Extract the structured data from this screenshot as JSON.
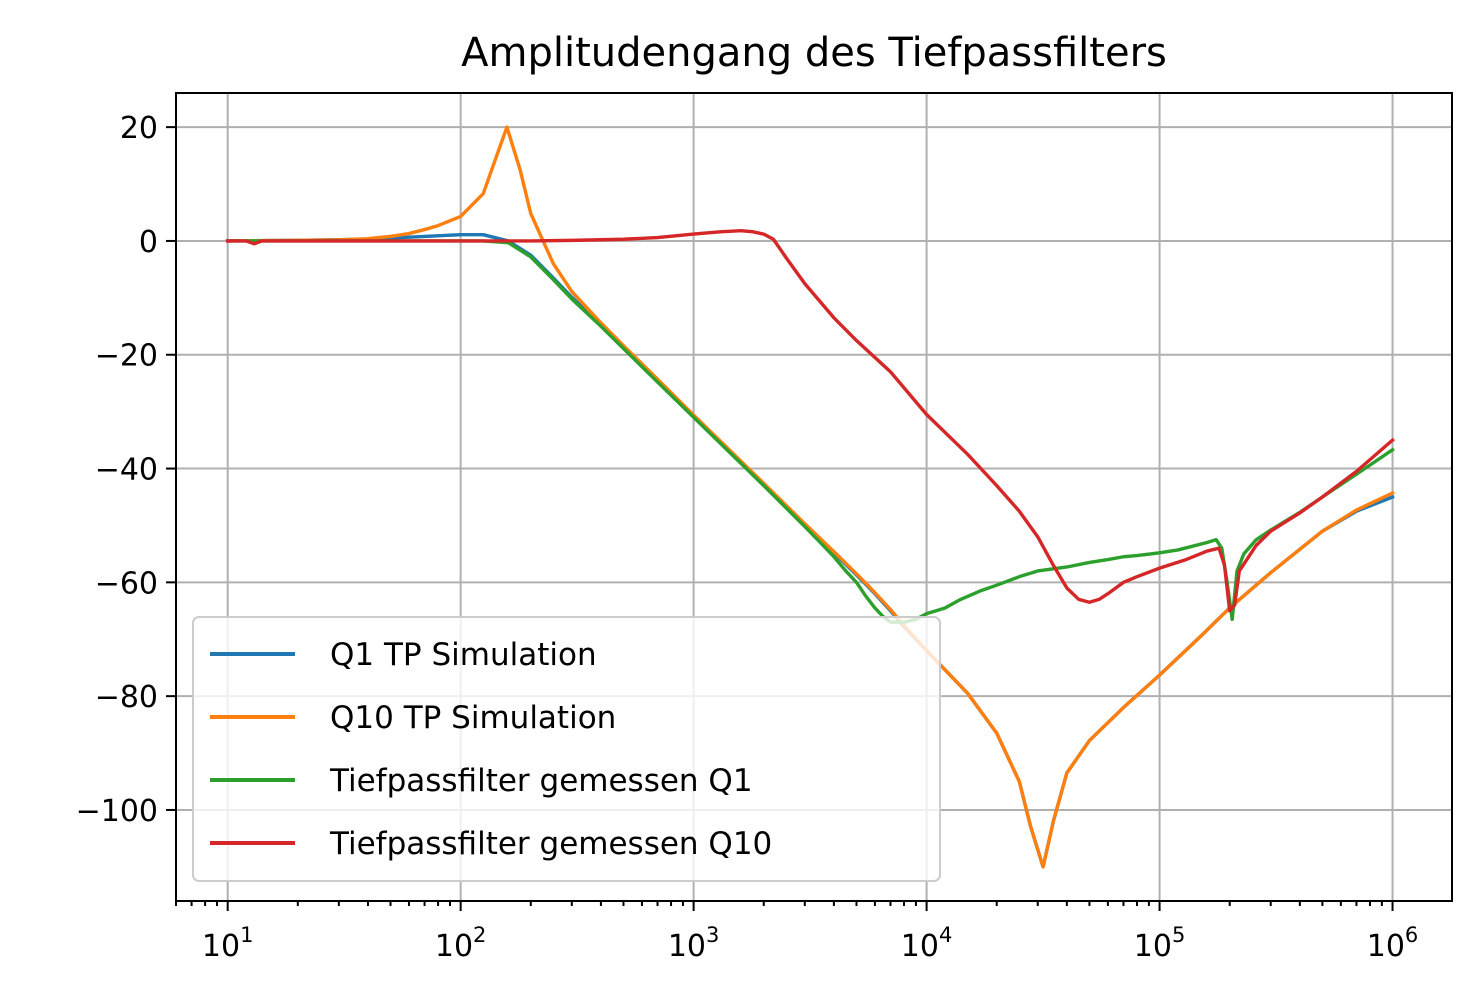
{
  "chart_data": {
    "type": "line",
    "title": "Amplitudengang des Tiefpassfilters",
    "xlabel": "",
    "ylabel": "",
    "xscale": "log",
    "xlim": [
      6,
      1800000
    ],
    "ylim": [
      -116,
      26
    ],
    "x_ticks": [
      {
        "value": 10,
        "base": "10",
        "exp": "1"
      },
      {
        "value": 100,
        "base": "10",
        "exp": "2"
      },
      {
        "value": 1000,
        "base": "10",
        "exp": "3"
      },
      {
        "value": 10000,
        "base": "10",
        "exp": "4"
      },
      {
        "value": 100000,
        "base": "10",
        "exp": "5"
      },
      {
        "value": 1000000,
        "base": "10",
        "exp": "6"
      }
    ],
    "y_ticks": [
      {
        "value": 20,
        "label": "20"
      },
      {
        "value": 0,
        "label": "0"
      },
      {
        "value": -20,
        "label": "−20"
      },
      {
        "value": -40,
        "label": "−40"
      },
      {
        "value": -60,
        "label": "−60"
      },
      {
        "value": -80,
        "label": "−80"
      },
      {
        "value": -100,
        "label": "−100"
      }
    ],
    "grid": true,
    "legend_position": "lower-left",
    "series": [
      {
        "name": "Q1 TP Simulation",
        "color": "#1f77b4",
        "points": [
          [
            10,
            0
          ],
          [
            20,
            0.1
          ],
          [
            40,
            0.3
          ],
          [
            70,
            0.8
          ],
          [
            100,
            1.1
          ],
          [
            125,
            1.1
          ],
          [
            160,
            0
          ],
          [
            200,
            -2.5
          ],
          [
            250,
            -6.5
          ],
          [
            300,
            -9.9
          ],
          [
            400,
            -14.7
          ],
          [
            500,
            -18.6
          ],
          [
            700,
            -24.5
          ],
          [
            1000,
            -30.7
          ],
          [
            2000,
            -42.7
          ],
          [
            3000,
            -49.8
          ],
          [
            4000,
            -54.8
          ],
          [
            5000,
            -58.7
          ],
          [
            6000,
            -62
          ],
          [
            7000,
            -65
          ],
          [
            8000,
            -67.8
          ],
          [
            10000,
            -72
          ],
          [
            15000,
            -79.5
          ],
          [
            20000,
            -86.5
          ],
          [
            25000,
            -95
          ],
          [
            28000,
            -103
          ],
          [
            31623,
            -110
          ],
          [
            35000,
            -102
          ],
          [
            40000,
            -93.5
          ],
          [
            50000,
            -87.8
          ],
          [
            70000,
            -82
          ],
          [
            100000,
            -76.3
          ],
          [
            150000,
            -69.5
          ],
          [
            200000,
            -64.5
          ],
          [
            300000,
            -58.3
          ],
          [
            500000,
            -51
          ],
          [
            700000,
            -47.5
          ],
          [
            1000000,
            -45
          ]
        ]
      },
      {
        "name": "Q10 TP Simulation",
        "color": "#ff7f0e",
        "points": [
          [
            10,
            0
          ],
          [
            20,
            0.1
          ],
          [
            30,
            0.2
          ],
          [
            40,
            0.4
          ],
          [
            50,
            0.8
          ],
          [
            60,
            1.3
          ],
          [
            70,
            2
          ],
          [
            80,
            2.7
          ],
          [
            100,
            4.3
          ],
          [
            125,
            8.3
          ],
          [
            140,
            14
          ],
          [
            158,
            20
          ],
          [
            180,
            12.5
          ],
          [
            200,
            4.8
          ],
          [
            250,
            -4
          ],
          [
            300,
            -8.9
          ],
          [
            400,
            -14.4
          ],
          [
            500,
            -18.4
          ],
          [
            700,
            -24.3
          ],
          [
            1000,
            -30.6
          ],
          [
            2000,
            -42.6
          ],
          [
            3000,
            -49.7
          ],
          [
            4000,
            -54.6
          ],
          [
            5000,
            -58.5
          ],
          [
            6000,
            -61.8
          ],
          [
            7000,
            -64.8
          ],
          [
            8000,
            -67.6
          ],
          [
            10000,
            -72
          ],
          [
            15000,
            -79.5
          ],
          [
            20000,
            -86.5
          ],
          [
            25000,
            -95
          ],
          [
            28000,
            -103
          ],
          [
            31623,
            -110
          ],
          [
            35000,
            -102
          ],
          [
            40000,
            -93.5
          ],
          [
            50000,
            -87.8
          ],
          [
            70000,
            -82
          ],
          [
            100000,
            -76.3
          ],
          [
            150000,
            -69.5
          ],
          [
            200000,
            -64.5
          ],
          [
            300000,
            -58.3
          ],
          [
            500000,
            -51
          ],
          [
            700000,
            -47.3
          ],
          [
            1000000,
            -44.3
          ]
        ]
      },
      {
        "name": "Tiefpassfilter gemessen Q1",
        "color": "#2ca02c",
        "points": [
          [
            10,
            0
          ],
          [
            20,
            0
          ],
          [
            50,
            0
          ],
          [
            100,
            0
          ],
          [
            125,
            0
          ],
          [
            160,
            -0.3
          ],
          [
            200,
            -2.8
          ],
          [
            250,
            -6.8
          ],
          [
            300,
            -10.2
          ],
          [
            400,
            -15
          ],
          [
            500,
            -18.9
          ],
          [
            700,
            -24.8
          ],
          [
            1000,
            -31
          ],
          [
            2000,
            -43
          ],
          [
            3000,
            -50.2
          ],
          [
            3500,
            -53
          ],
          [
            4000,
            -55.5
          ],
          [
            4500,
            -58
          ],
          [
            5000,
            -60
          ],
          [
            5500,
            -62.5
          ],
          [
            6000,
            -64.5
          ],
          [
            6500,
            -66
          ],
          [
            7000,
            -67
          ],
          [
            8000,
            -67
          ],
          [
            9000,
            -66.5
          ],
          [
            10000,
            -65.5
          ],
          [
            11000,
            -65
          ],
          [
            12000,
            -64.5
          ],
          [
            14000,
            -63
          ],
          [
            17000,
            -61.5
          ],
          [
            20000,
            -60.5
          ],
          [
            25000,
            -59
          ],
          [
            30000,
            -58
          ],
          [
            40000,
            -57.3
          ],
          [
            50000,
            -56.5
          ],
          [
            60000,
            -56
          ],
          [
            70000,
            -55.5
          ],
          [
            80000,
            -55.3
          ],
          [
            100000,
            -54.8
          ],
          [
            120000,
            -54.3
          ],
          [
            140000,
            -53.6
          ],
          [
            160000,
            -53
          ],
          [
            175000,
            -52.5
          ],
          [
            185000,
            -54
          ],
          [
            195000,
            -60
          ],
          [
            205000,
            -66.5
          ],
          [
            215000,
            -58
          ],
          [
            230000,
            -55
          ],
          [
            260000,
            -52.5
          ],
          [
            300000,
            -50.8
          ],
          [
            400000,
            -47.7
          ],
          [
            500000,
            -45
          ],
          [
            700000,
            -41
          ],
          [
            1000000,
            -36.7
          ]
        ]
      },
      {
        "name": "Tiefpassfilter gemessen Q10",
        "color": "#d62728",
        "points": [
          [
            10,
            0
          ],
          [
            12,
            0
          ],
          [
            13,
            -0.5
          ],
          [
            14,
            0
          ],
          [
            20,
            0
          ],
          [
            50,
            0
          ],
          [
            100,
            0
          ],
          [
            200,
            0
          ],
          [
            300,
            0.1
          ],
          [
            500,
            0.3
          ],
          [
            700,
            0.6
          ],
          [
            1000,
            1.2
          ],
          [
            1300,
            1.6
          ],
          [
            1600,
            1.8
          ],
          [
            1800,
            1.6
          ],
          [
            2000,
            1.2
          ],
          [
            2200,
            0.3
          ],
          [
            2500,
            -3
          ],
          [
            3000,
            -7.5
          ],
          [
            4000,
            -13.5
          ],
          [
            5000,
            -17.5
          ],
          [
            7000,
            -23
          ],
          [
            10000,
            -30.5
          ],
          [
            15000,
            -37.5
          ],
          [
            20000,
            -43
          ],
          [
            25000,
            -47.5
          ],
          [
            30000,
            -52
          ],
          [
            35000,
            -57
          ],
          [
            40000,
            -61
          ],
          [
            45000,
            -63
          ],
          [
            50000,
            -63.5
          ],
          [
            55000,
            -63
          ],
          [
            60000,
            -62
          ],
          [
            70000,
            -60
          ],
          [
            80000,
            -59
          ],
          [
            100000,
            -57.5
          ],
          [
            130000,
            -56
          ],
          [
            160000,
            -54.5
          ],
          [
            180000,
            -54
          ],
          [
            190000,
            -57
          ],
          [
            200000,
            -65
          ],
          [
            210000,
            -64
          ],
          [
            220000,
            -58
          ],
          [
            260000,
            -53.5
          ],
          [
            300000,
            -51
          ],
          [
            400000,
            -47.8
          ],
          [
            500000,
            -45
          ],
          [
            700000,
            -40.5
          ],
          [
            1000000,
            -35
          ]
        ]
      }
    ]
  }
}
